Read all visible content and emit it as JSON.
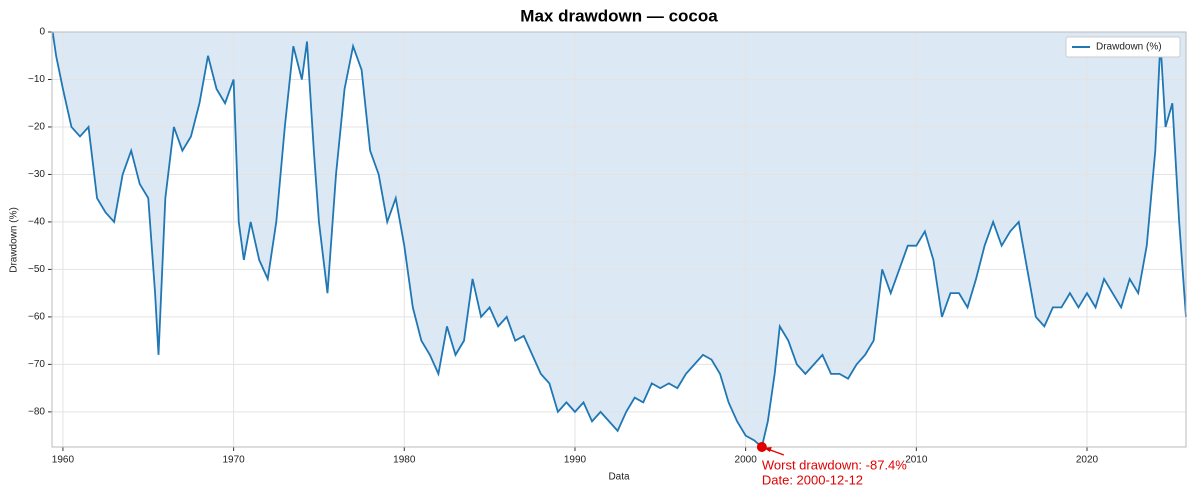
{
  "chart_data": {
    "type": "line",
    "title": "Max drawdown — cocoa",
    "xlabel": "Data",
    "ylabel": "Drawdown (%)",
    "series": [
      {
        "name": "Drawdown (%)",
        "color": "#1f77b4",
        "fill": "#dce9f5",
        "x": [
          1959.4,
          1959.6,
          1960,
          1960.5,
          1961,
          1961.5,
          1962,
          1962.5,
          1963,
          1963.5,
          1964,
          1964.5,
          1965,
          1965.4,
          1965.6,
          1966,
          1966.5,
          1967,
          1967.5,
          1968,
          1968.5,
          1969,
          1969.5,
          1970,
          1970.3,
          1970.6,
          1971,
          1971.5,
          1972,
          1972.5,
          1973,
          1973.5,
          1974,
          1974.3,
          1974.7,
          1975,
          1975.5,
          1976,
          1976.5,
          1977,
          1977.5,
          1978,
          1978.5,
          1979,
          1979.5,
          1980,
          1980.5,
          1981,
          1981.5,
          1982,
          1982.5,
          1983,
          1983.5,
          1984,
          1984.5,
          1985,
          1985.5,
          1986,
          1986.5,
          1987,
          1987.5,
          1988,
          1988.5,
          1989,
          1989.5,
          1990,
          1990.5,
          1991,
          1991.5,
          1992,
          1992.5,
          1993,
          1993.5,
          1994,
          1994.5,
          1995,
          1995.5,
          1996,
          1996.5,
          1997,
          1997.5,
          1998,
          1998.5,
          1999,
          1999.5,
          2000,
          2000.5,
          2000.95,
          2001.3,
          2001.7,
          2002,
          2002.5,
          2003,
          2003.5,
          2004,
          2004.5,
          2005,
          2005.5,
          2006,
          2006.5,
          2007,
          2007.5,
          2008,
          2008.5,
          2009,
          2009.5,
          2010,
          2010.5,
          2011,
          2011.5,
          2012,
          2012.5,
          2013,
          2013.5,
          2014,
          2014.5,
          2015,
          2015.5,
          2016,
          2016.5,
          2017,
          2017.5,
          2018,
          2018.5,
          2019,
          2019.5,
          2020,
          2020.5,
          2021,
          2021.5,
          2022,
          2022.5,
          2023,
          2023.5,
          2024,
          2024.3,
          2024.6,
          2025,
          2025.4,
          2025.8
        ],
        "values": [
          0,
          -5,
          -12,
          -20,
          -22,
          -20,
          -35,
          -38,
          -40,
          -30,
          -25,
          -32,
          -35,
          -55,
          -68,
          -35,
          -20,
          -25,
          -22,
          -15,
          -5,
          -12,
          -15,
          -10,
          -40,
          -48,
          -40,
          -48,
          -52,
          -40,
          -20,
          -3,
          -10,
          -2,
          -25,
          -40,
          -55,
          -30,
          -12,
          -3,
          -8,
          -25,
          -30,
          -40,
          -35,
          -45,
          -58,
          -65,
          -68,
          -72,
          -62,
          -68,
          -65,
          -52,
          -60,
          -58,
          -62,
          -60,
          -65,
          -64,
          -68,
          -72,
          -74,
          -80,
          -78,
          -80,
          -78,
          -82,
          -80,
          -82,
          -84,
          -80,
          -77,
          -78,
          -74,
          -75,
          -74,
          -75,
          -72,
          -70,
          -68,
          -69,
          -72,
          -78,
          -82,
          -85,
          -86,
          -87.4,
          -82,
          -72,
          -62,
          -65,
          -70,
          -72,
          -70,
          -68,
          -72,
          -72,
          -73,
          -70,
          -68,
          -65,
          -50,
          -55,
          -50,
          -45,
          -45,
          -42,
          -48,
          -60,
          -55,
          -55,
          -58,
          -52,
          -45,
          -40,
          -45,
          -42,
          -40,
          -50,
          -60,
          -62,
          -58,
          -58,
          -55,
          -58,
          -55,
          -58,
          -52,
          -55,
          -58,
          -52,
          -55,
          -45,
          -25,
          -2,
          -20,
          -15,
          -40,
          -60
        ]
      }
    ],
    "xlim": [
      1959.36,
      2025.8
    ],
    "xticks": [
      1960,
      1970,
      1980,
      1990,
      2000,
      2010,
      2020
    ],
    "ylim": [
      -87.4,
      0
    ],
    "yticks": [
      0,
      {
        "value": -10,
        "label": "−10"
      },
      {
        "value": -20,
        "label": "−20"
      },
      {
        "value": -30,
        "label": "−30"
      },
      {
        "value": -40,
        "label": "−40"
      },
      {
        "value": -50,
        "label": "−50"
      },
      {
        "value": -60,
        "label": "−60"
      },
      {
        "value": -70,
        "label": "−70"
      },
      {
        "value": -80,
        "label": "−80"
      }
    ],
    "grid": true,
    "legend": "upper right",
    "annotation": {
      "lines": [
        "Worst drawdown: -87.4%",
        "Date: 2000-12-12"
      ],
      "x": 2000.95,
      "y": -87.4,
      "color": "#e00000"
    }
  }
}
